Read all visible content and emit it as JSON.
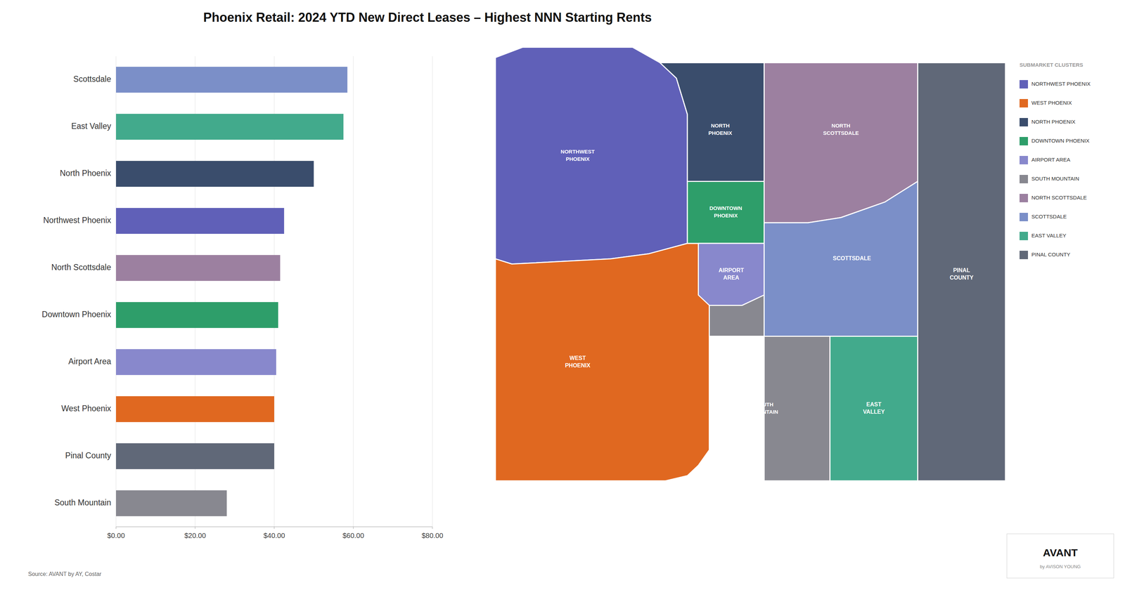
{
  "chart_data": [
    {
      "type": "bar",
      "orientation": "horizontal",
      "title": "Phoenix Retail: 2024 YTD New Direct Leases – Highest NNN Starting Rents",
      "categories": [
        "Scottsdale",
        "East Valley",
        "North Phoenix",
        "Northwest Phoenix",
        "North Scottsdale",
        "Downtown Phoenix",
        "Airport Area",
        "West Phoenix",
        "Pinal County",
        "South Mountain"
      ],
      "values": [
        58.5,
        57.5,
        50.0,
        42.5,
        41.5,
        41.0,
        40.5,
        40.0,
        40.0,
        28.0
      ],
      "colors": [
        "#7b8fc8",
        "#42aa8c",
        "#3a4d6c",
        "#6060b8",
        "#9c80a0",
        "#2e9e6a",
        "#8888cc",
        "#e06820",
        "#606878",
        "#888890"
      ],
      "xlim": [
        0,
        80
      ],
      "xticks": [
        {
          "value": 0,
          "label": "$0.00"
        },
        {
          "value": 20,
          "label": "$20.00"
        },
        {
          "value": 40,
          "label": "$40.00"
        },
        {
          "value": 60,
          "label": "$60.00"
        },
        {
          "value": 80,
          "label": "$80.00"
        }
      ],
      "grid": true,
      "annotations": [
        "Source: AVANT by AY, Costar",
        "AVANT",
        "by AVISON YOUNG"
      ]
    },
    {
      "type": "map",
      "title": "SUBMARKET CLUSTERS",
      "categories": [
        "NORTHWEST PHOENIX",
        "WEST PHOENIX",
        "NORTH PHOENIX",
        "DOWNTOWN PHOENIX",
        "AIRPORT AREA",
        "SOUTH MOUNTAIN",
        "NORTH SCOTTSDALE",
        "SCOTTSDALE",
        "EAST VALLEY",
        "PINAL COUNTY"
      ],
      "colors": [
        "#6060b8",
        "#e06820",
        "#3a4d6c",
        "#2e9e6a",
        "#8888cc",
        "#888890",
        "#9c80a0",
        "#7b8fc8",
        "#42aa8c",
        "#606878"
      ],
      "annotations": [
        "NORTHWEST\nPHOENIX",
        "WEST\nPHOENIX",
        "NORTH\nPHOENIX",
        "DOWNTOWN\nPHOENIX",
        "AIRPORT\nAREA",
        "SOUTH\nMOUNTAIN",
        "NORTH\nSCOTTSDALE",
        "SCOTTSDALE",
        "EAST\nVALLEY",
        "PINAL\nCOUNTY"
      ],
      "legend": "right",
      "tick_labels": false
    }
  ]
}
